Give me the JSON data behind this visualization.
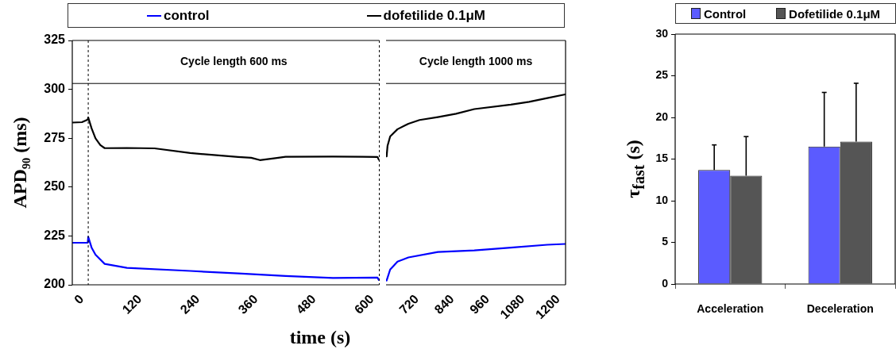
{
  "chart_data": [
    {
      "type": "line",
      "ylabel": "APD₉₀ (ms)",
      "xlabel": "time (s)",
      "legend": "top",
      "marker": "none",
      "tick_labels": "xy",
      "xlim": [
        -20,
        615
      ],
      "xticks": [
        0,
        120,
        240,
        360,
        480,
        600
      ],
      "ylim": [
        200,
        325
      ],
      "yticks": [
        200,
        225,
        250,
        275,
        300,
        325
      ],
      "series": [
        {
          "name": "control",
          "color": "#0000ff",
          "x": [
            -20,
            0,
            12,
            13,
            20,
            28,
            47,
            93,
            224,
            323,
            421,
            519,
            611,
            614
          ],
          "values": [
            221.5,
            221.5,
            221.6,
            224.5,
            219,
            215.4,
            210.7,
            208.7,
            207.1,
            205.8,
            204.5,
            203.5,
            203.7,
            202.5
          ]
        },
        {
          "name": "dofetilide 0.1μM",
          "color": "#000000",
          "x": [
            -20,
            0,
            12,
            13,
            20,
            28,
            38,
            47,
            93,
            150,
            224,
            323,
            350,
            368,
            400,
            421,
            519,
            580,
            611,
            614
          ],
          "values": [
            283,
            283.2,
            284.5,
            285.6,
            280,
            274.9,
            271.5,
            269.9,
            270,
            269.8,
            267.4,
            265.4,
            265,
            263.8,
            264.8,
            265.5,
            265.6,
            265.5,
            265.4,
            264
          ]
        }
      ],
      "ref_lines": [
        {
          "axis": "x",
          "value": 13,
          "line_style": "dashed"
        },
        {
          "axis": "x",
          "value": 615,
          "line_style": "dashed"
        },
        {
          "axis": "y",
          "value": 303
        }
      ],
      "annotations": [
        "Cycle length 600 ms"
      ]
    },
    {
      "type": "line",
      "marker": "none",
      "tick_labels": "x",
      "xlim": [
        615,
        1225
      ],
      "xticks": [
        720,
        840,
        960,
        1080,
        1200
      ],
      "ylim": [
        200,
        325
      ],
      "yticks": [
        200,
        225,
        250,
        275,
        300,
        325
      ],
      "series": [
        {
          "color": "#0000ff",
          "x": [
            617,
            629,
            654,
            691,
            791,
            915,
            1039,
            1163,
            1224
          ],
          "values": [
            202.2,
            207.8,
            211.9,
            214,
            216.8,
            217.6,
            219,
            220.5,
            220.9
          ]
        },
        {
          "color": "#000000",
          "x": [
            617,
            620,
            629,
            654,
            691,
            729,
            791,
            853,
            915,
            1039,
            1101,
            1163,
            1224
          ],
          "values": [
            265.7,
            271,
            275.9,
            279.6,
            282.4,
            284.3,
            285.8,
            287.5,
            289.9,
            292.2,
            293.6,
            295.5,
            297.4
          ]
        }
      ],
      "ref_lines": [
        {
          "axis": "y",
          "value": 303
        }
      ],
      "annotations": [
        "Cycle length 1000 ms"
      ]
    },
    {
      "type": "bar",
      "ylabel": "τ$_{fast}$ (s)",
      "legend": "top",
      "categories": [
        "Acceleration",
        "Deceleration"
      ],
      "ylim": [
        0,
        30
      ],
      "yticks": [
        0,
        5,
        10,
        15,
        20,
        25,
        30
      ],
      "series": [
        {
          "name": "Control",
          "color": "#5b5bff",
          "values": [
            13.7,
            16.5
          ],
          "errors": [
            [
              13.7,
              16.7
            ],
            [
              16.5,
              23
            ]
          ]
        },
        {
          "name": "Dofetilide 0.1μM",
          "color": "#555555",
          "values": [
            13,
            17.1
          ],
          "errors": [
            [
              13,
              17.7
            ],
            [
              17.1,
              24.1
            ]
          ]
        }
      ]
    }
  ]
}
